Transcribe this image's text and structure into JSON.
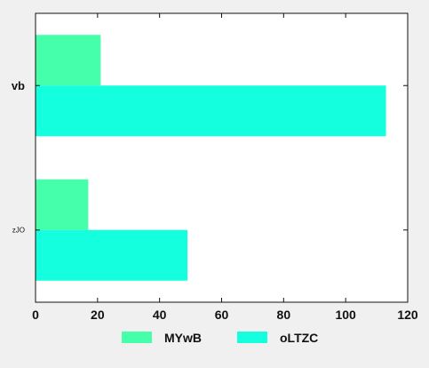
{
  "chart_data": {
    "type": "bar",
    "orientation": "horizontal",
    "categories": [
      "vb",
      "zJO"
    ],
    "series": [
      {
        "name": "MYwB",
        "values": [
          21,
          17
        ],
        "color": "#45ffaa"
      },
      {
        "name": "oLTZC",
        "values": [
          113,
          49
        ],
        "color": "#14ffdd"
      }
    ],
    "title": "",
    "xlabel": "",
    "ylabel": "",
    "xlim": [
      0,
      120
    ],
    "xticks": [
      0,
      20,
      40,
      60,
      80,
      100,
      120
    ],
    "grid": false,
    "legend_position": "bottom-center"
  }
}
